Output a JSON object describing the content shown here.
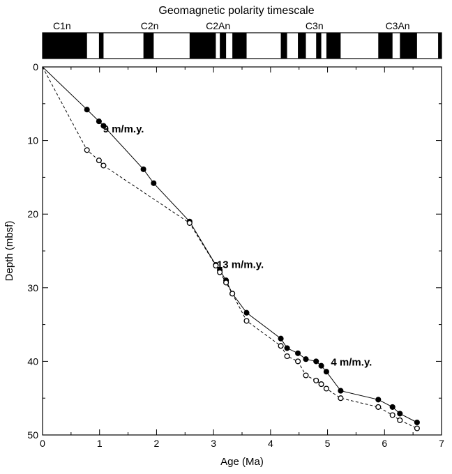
{
  "chart_data": {
    "type": "line",
    "title": "Geomagnetic polarity timescale",
    "xlabel": "Age (Ma)",
    "ylabel": "Depth (mbsf)",
    "xlim": [
      0,
      7
    ],
    "ylim": [
      50,
      0
    ],
    "x_ticks": [
      0,
      1,
      2,
      3,
      4,
      5,
      6,
      7
    ],
    "y_ticks": [
      0,
      10,
      20,
      30,
      40,
      50
    ],
    "grid": false,
    "legend": "none",
    "series": [
      {
        "style": "solid line, filled circles",
        "points": [
          [
            0,
            0
          ],
          [
            0.78,
            5.8
          ],
          [
            0.99,
            7.4
          ],
          [
            1.07,
            8.0
          ],
          [
            1.77,
            13.9
          ],
          [
            1.95,
            15.8
          ],
          [
            2.58,
            21.0
          ],
          [
            3.04,
            26.9
          ],
          [
            3.11,
            27.6
          ],
          [
            3.22,
            29.0
          ],
          [
            3.33,
            30.8
          ],
          [
            3.58,
            33.4
          ],
          [
            4.18,
            36.9
          ],
          [
            4.29,
            38.2
          ],
          [
            4.48,
            38.9
          ],
          [
            4.62,
            39.7
          ],
          [
            4.8,
            40.0
          ],
          [
            4.89,
            40.6
          ],
          [
            4.98,
            41.4
          ],
          [
            5.23,
            44.0
          ],
          [
            5.89,
            45.2
          ],
          [
            6.14,
            46.2
          ],
          [
            6.27,
            47.1
          ],
          [
            6.57,
            48.3
          ]
        ]
      },
      {
        "style": "dashed line, open circles",
        "points": [
          [
            0,
            0
          ],
          [
            0.78,
            11.3
          ],
          [
            0.99,
            12.7
          ],
          [
            1.07,
            13.4
          ],
          [
            2.58,
            21.2
          ],
          [
            3.04,
            27.0
          ],
          [
            3.11,
            27.9
          ],
          [
            3.22,
            29.3
          ],
          [
            3.33,
            30.8
          ],
          [
            3.58,
            34.5
          ],
          [
            4.18,
            37.9
          ],
          [
            4.29,
            39.3
          ],
          [
            4.48,
            40.0
          ],
          [
            4.62,
            41.9
          ],
          [
            4.8,
            42.6
          ],
          [
            4.89,
            43.1
          ],
          [
            4.98,
            43.7
          ],
          [
            5.23,
            45.0
          ],
          [
            5.89,
            46.2
          ],
          [
            6.14,
            47.3
          ],
          [
            6.27,
            48.0
          ],
          [
            6.57,
            49.1
          ]
        ]
      }
    ],
    "annotations": [
      {
        "text": "9 m/m.y.",
        "x": 1.42,
        "y": 8.9
      },
      {
        "text": "13 m/m.y.",
        "x": 3.47,
        "y": 27.3
      },
      {
        "text": "4 m/m.y.",
        "x": 5.42,
        "y": 40.6
      }
    ],
    "timescale": {
      "title": "Geomagnetic polarity timescale",
      "normal_chrons": [
        [
          0.0,
          0.78
        ],
        [
          0.99,
          1.07
        ],
        [
          1.77,
          1.95
        ],
        [
          2.58,
          3.04
        ],
        [
          3.11,
          3.22
        ],
        [
          3.33,
          3.58
        ],
        [
          4.18,
          4.29
        ],
        [
          4.48,
          4.62
        ],
        [
          4.8,
          4.89
        ],
        [
          4.98,
          5.23
        ],
        [
          5.89,
          6.14
        ],
        [
          6.27,
          6.57
        ],
        [
          6.94,
          7.0
        ]
      ],
      "labels": [
        {
          "text": "C1n",
          "age": 0.34
        },
        {
          "text": "C2n",
          "age": 1.88
        },
        {
          "text": "C2An",
          "age": 3.08
        },
        {
          "text": "C3n",
          "age": 4.77
        },
        {
          "text": "C3An",
          "age": 6.23
        }
      ]
    }
  }
}
